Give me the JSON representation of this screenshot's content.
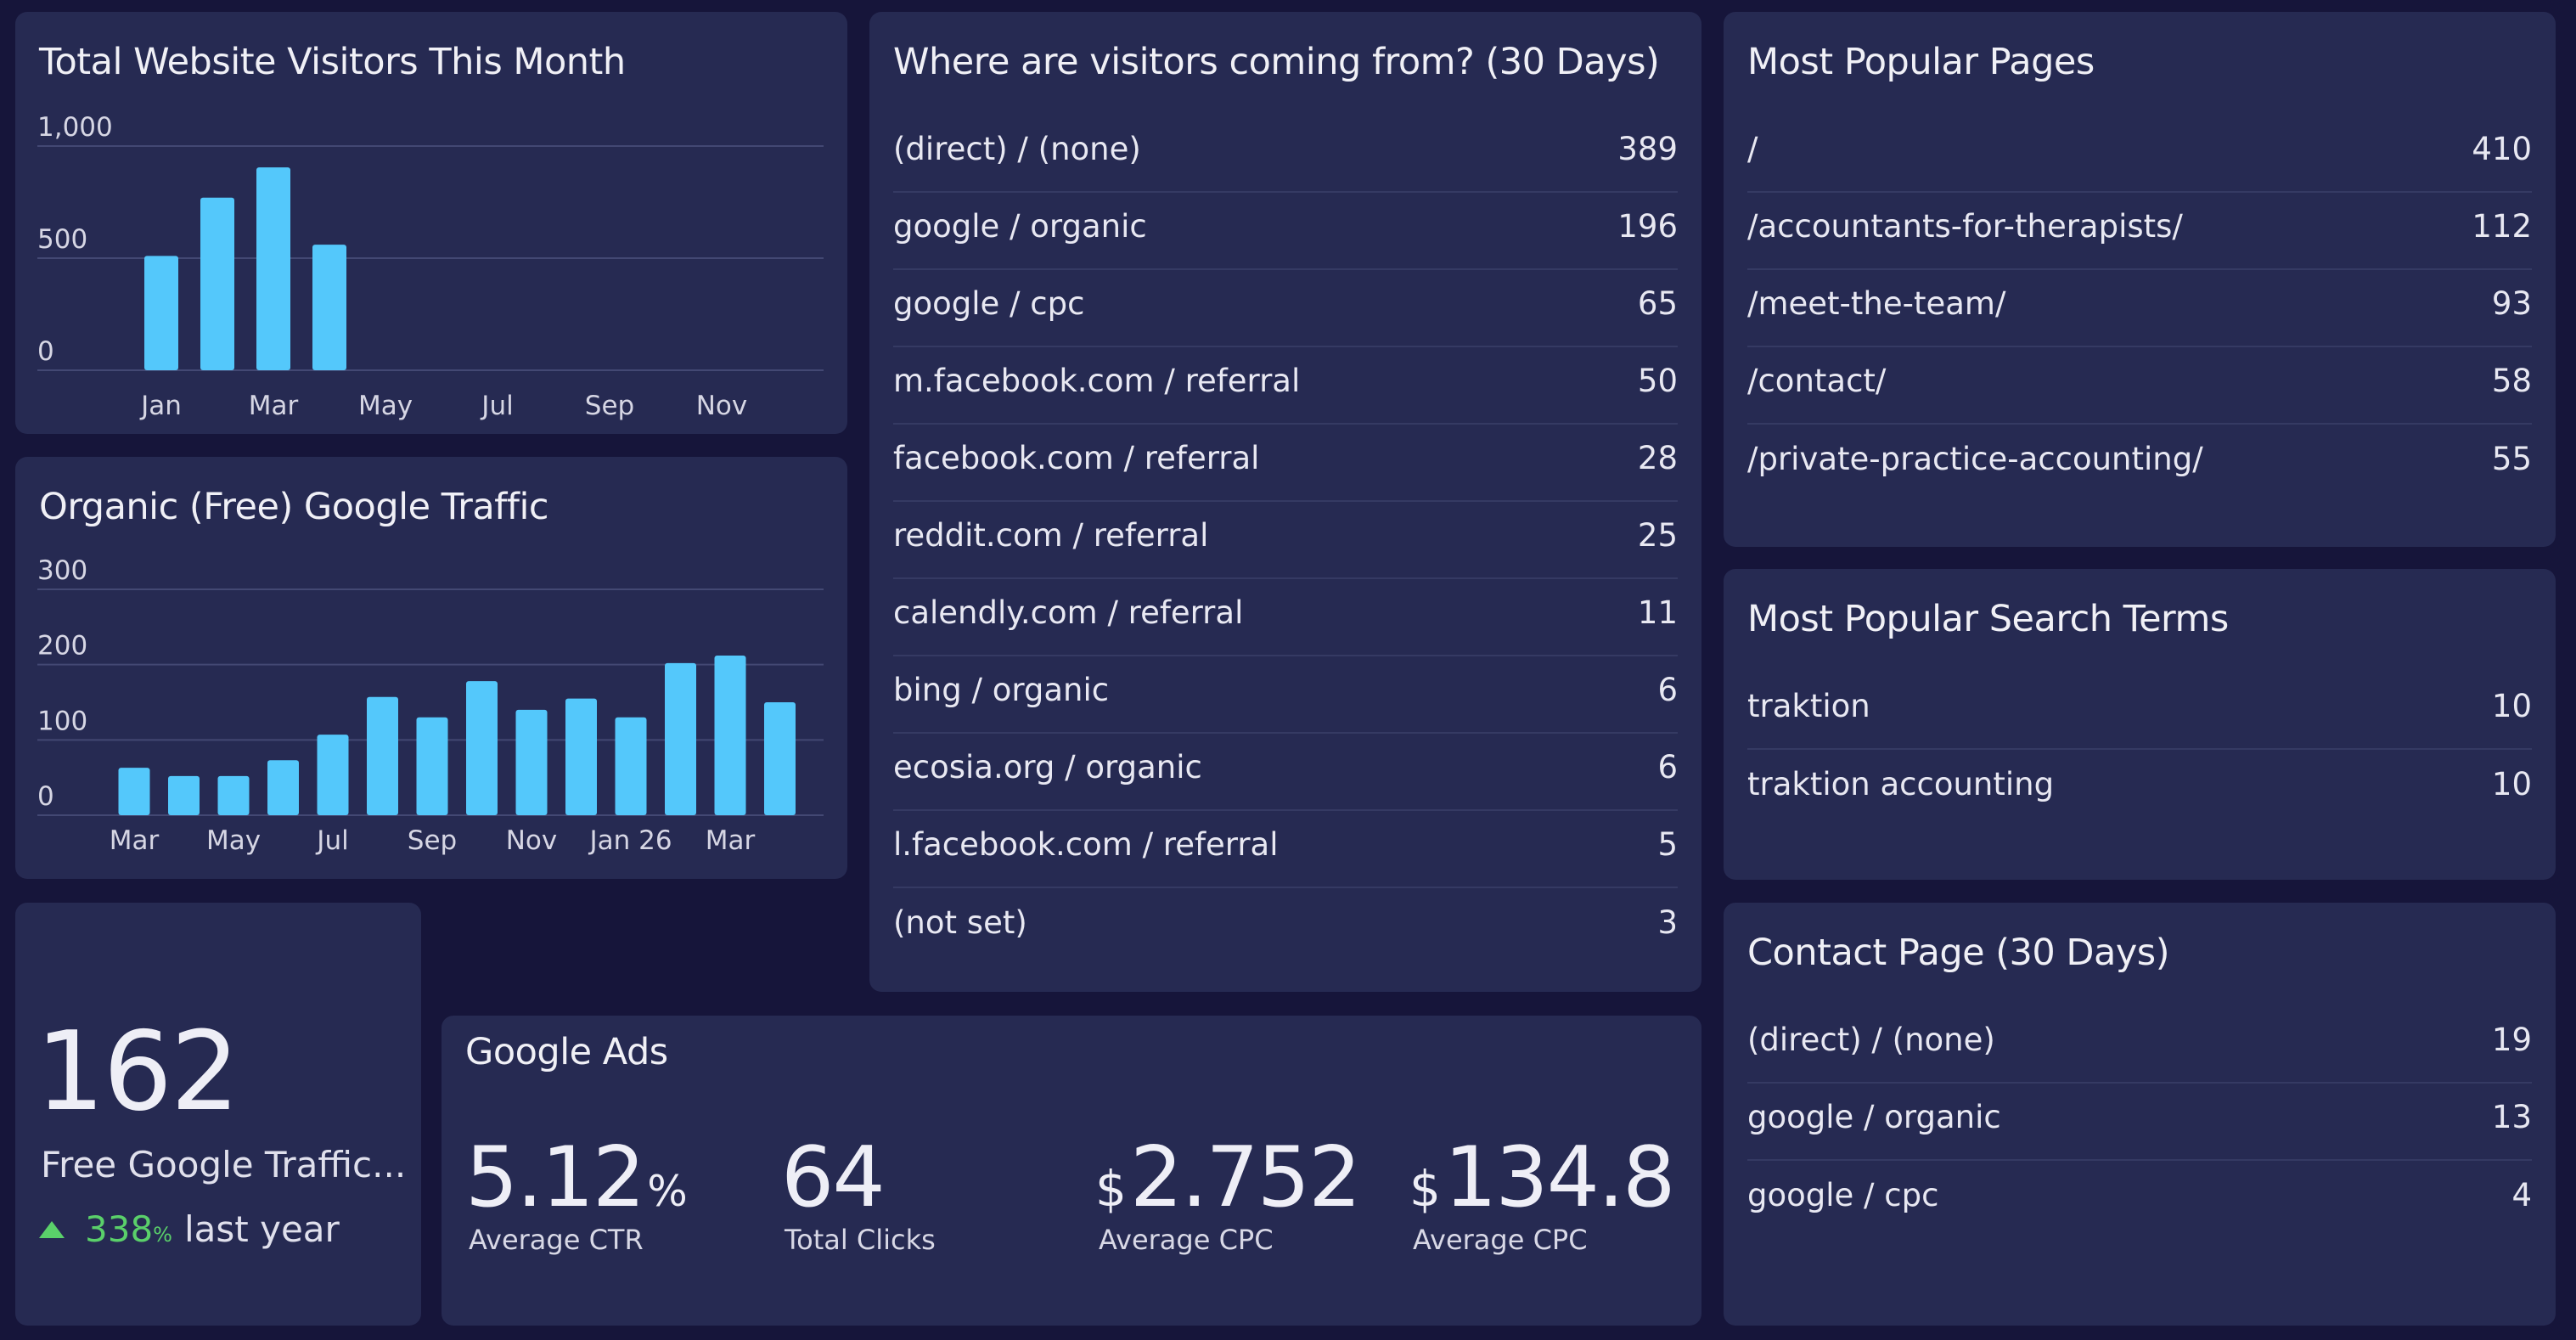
{
  "visitors": {
    "title": "Total Website Visitors This Month",
    "chart_data": {
      "type": "bar",
      "title": "Total Website Visitors This Month",
      "categories": [
        "Jan",
        "Feb",
        "Mar",
        "Apr",
        "May",
        "Jun",
        "Jul",
        "Aug",
        "Sep",
        "Oct",
        "Nov",
        "Dec"
      ],
      "values": [
        510,
        770,
        905,
        560,
        0,
        0,
        0,
        0,
        0,
        0,
        0,
        0
      ],
      "x_tick_labels": [
        "Jan",
        "Mar",
        "May",
        "Jul",
        "Sep",
        "Nov"
      ],
      "y_ticks": [
        "0",
        "500",
        "1,000"
      ],
      "ylim": [
        0,
        1000
      ],
      "grid": true,
      "bar_color": "#54c8fb"
    }
  },
  "organic": {
    "title": "Organic (Free) Google Traffic",
    "chart_data": {
      "type": "bar",
      "title": "Organic (Free) Google Traffic",
      "categories": [
        "Mar",
        "Apr",
        "May",
        "Jun",
        "Jul",
        "Aug",
        "Sep",
        "Oct",
        "Nov",
        "Dec",
        "Jan 26",
        "Feb",
        "Mar",
        "Apr"
      ],
      "values": [
        63,
        52,
        52,
        73,
        107,
        157,
        130,
        178,
        140,
        155,
        130,
        202,
        212,
        150
      ],
      "x_tick_labels": [
        "Mar",
        "May",
        "Jul",
        "Sep",
        "Nov",
        "Jan 26",
        "Mar"
      ],
      "y_ticks": [
        "0",
        "100",
        "200",
        "300"
      ],
      "ylim": [
        0,
        300
      ],
      "grid": true,
      "bar_color": "#54c8fb"
    }
  },
  "sources": {
    "title": "Where are visitors coming from? (30 Days)",
    "rows": [
      {
        "label": "(direct) / (none)",
        "value": "389"
      },
      {
        "label": "google / organic",
        "value": "196"
      },
      {
        "label": "google / cpc",
        "value": "65"
      },
      {
        "label": "m.facebook.com / referral",
        "value": "50"
      },
      {
        "label": "facebook.com / referral",
        "value": "28"
      },
      {
        "label": "reddit.com / referral",
        "value": "25"
      },
      {
        "label": "calendly.com / referral",
        "value": "11"
      },
      {
        "label": "bing / organic",
        "value": "6"
      },
      {
        "label": "ecosia.org / organic",
        "value": "6"
      },
      {
        "label": "l.facebook.com / referral",
        "value": "5"
      },
      {
        "label": "(not set)",
        "value": "3"
      }
    ]
  },
  "pages": {
    "title": "Most Popular Pages",
    "rows": [
      {
        "label": "/",
        "value": "410"
      },
      {
        "label": "/accountants-for-therapists/",
        "value": "112"
      },
      {
        "label": "/meet-the-team/",
        "value": "93"
      },
      {
        "label": "/contact/",
        "value": "58"
      },
      {
        "label": "/private-practice-accounting/",
        "value": "55"
      }
    ]
  },
  "search_terms": {
    "title": "Most Popular Search Terms",
    "rows": [
      {
        "label": "traktion",
        "value": "10"
      },
      {
        "label": "traktion accounting",
        "value": "10"
      }
    ]
  },
  "contact": {
    "title": "Contact Page (30 Days)",
    "rows": [
      {
        "label": "(direct) / (none)",
        "value": "19"
      },
      {
        "label": "google / organic",
        "value": "13"
      },
      {
        "label": "google / cpc",
        "value": "4"
      }
    ]
  },
  "kpi": {
    "value": "162",
    "label": "Free Google Traffic...",
    "change_value": "338",
    "change_unit": "%",
    "change_suffix": "last year",
    "up_color": "#5ad06a"
  },
  "ads": {
    "title": "Google Ads",
    "metrics": [
      {
        "prefix": "",
        "value": "5.12",
        "suffix": "%",
        "label": "Average CTR"
      },
      {
        "prefix": "",
        "value": "64",
        "suffix": "",
        "label": "Total Clicks"
      },
      {
        "prefix": "$",
        "value": "2.752",
        "suffix": "",
        "label": "Average CPC"
      },
      {
        "prefix": "$",
        "value": "134.8",
        "suffix": "",
        "label": "Average CPC"
      }
    ]
  }
}
